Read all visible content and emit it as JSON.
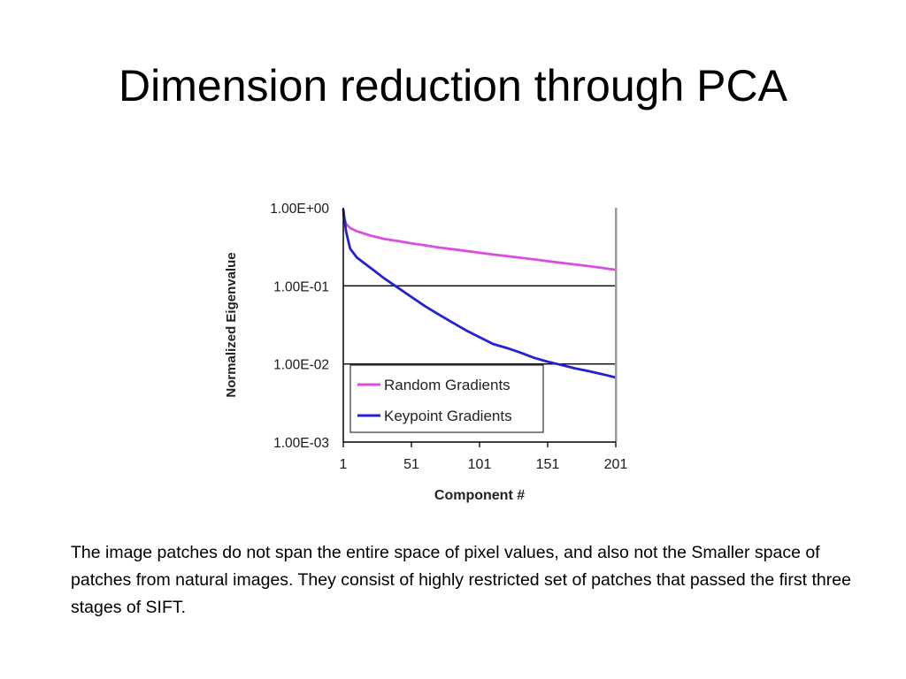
{
  "slide": {
    "title": "Dimension reduction through PCA",
    "caption": "The image patches do not span the entire space of pixel values, and also not the Smaller space of patches from natural images. They consist of highly restricted set of patches that passed the first three stages of SIFT."
  },
  "chart_data": {
    "type": "line",
    "title": "",
    "xlabel": "Component #",
    "ylabel": "Normalized Eigenvalue",
    "y_scale": "log",
    "xlim": [
      1,
      201
    ],
    "ylim": [
      0.001,
      1
    ],
    "x_ticks": [
      1,
      51,
      101,
      151,
      201
    ],
    "x_tick_labels": [
      "1",
      "51",
      "101",
      "151",
      "201"
    ],
    "y_ticks": [
      1,
      0.1,
      0.01,
      0.001
    ],
    "y_tick_labels": [
      "1.00E+00",
      "1.00E-01",
      "1.00E-02",
      "1.00E-03"
    ],
    "grid": "horizontal",
    "legend_position": "bottom-right",
    "series": [
      {
        "name": "Random Gradients",
        "color": "#d94ee0",
        "x": [
          1,
          3,
          6,
          11,
          21,
          31,
          41,
          51,
          61,
          71,
          81,
          91,
          101,
          111,
          121,
          131,
          141,
          151,
          161,
          171,
          181,
          191,
          201
        ],
        "y": [
          0.82,
          0.62,
          0.55,
          0.5,
          0.44,
          0.4,
          0.375,
          0.35,
          0.33,
          0.31,
          0.295,
          0.28,
          0.265,
          0.252,
          0.24,
          0.229,
          0.218,
          0.207,
          0.197,
          0.188,
          0.179,
          0.17,
          0.16
        ]
      },
      {
        "name": "Keypoint Gradients",
        "color": "#2121d8",
        "x": [
          1,
          3,
          6,
          11,
          21,
          31,
          41,
          51,
          61,
          71,
          81,
          91,
          101,
          111,
          121,
          131,
          141,
          151,
          161,
          171,
          181,
          191,
          201
        ],
        "y": [
          0.95,
          0.5,
          0.3,
          0.23,
          0.17,
          0.125,
          0.095,
          0.072,
          0.055,
          0.043,
          0.034,
          0.027,
          0.022,
          0.018,
          0.016,
          0.014,
          0.012,
          0.0107,
          0.0097,
          0.0088,
          0.0081,
          0.0074,
          0.0067
        ]
      }
    ]
  }
}
